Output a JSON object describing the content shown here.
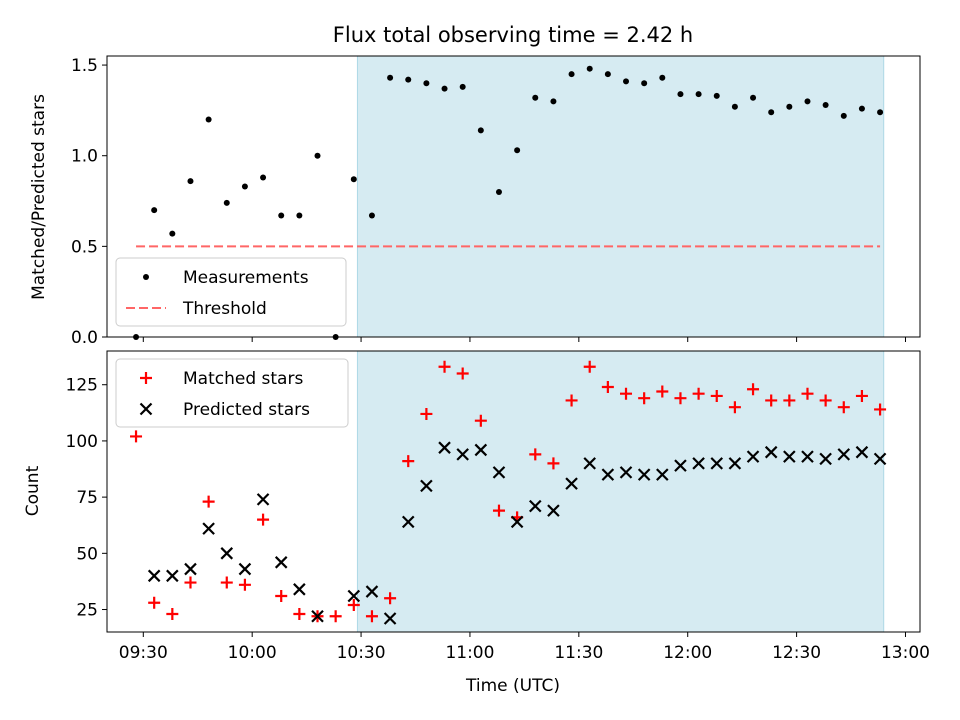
{
  "chart_data": {
    "title": "Flux total observing time = 2.42 h",
    "xlabel": "Time (UTC)",
    "x_ticks": [
      "09:30",
      "10:00",
      "10:30",
      "11:00",
      "11:30",
      "12:00",
      "12:30",
      "13:00"
    ],
    "x_tick_minutes": [
      570,
      600,
      630,
      660,
      690,
      720,
      750,
      780
    ],
    "xlim_minutes": [
      560,
      784
    ],
    "highlight_span_minutes": [
      629,
      774
    ],
    "highlight_color": "#add8e6",
    "panels": [
      {
        "type": "scatter",
        "ylabel": "Matched/Predicted stars",
        "ylim": [
          0,
          1.55
        ],
        "y_ticks": [
          "0.0",
          "0.5",
          "1.0",
          "1.5"
        ],
        "y_tick_values": [
          0,
          0.5,
          1.0,
          1.5
        ],
        "legend": "lower-left",
        "series": [
          {
            "name": "Measurements",
            "marker": "dot",
            "color": "#000000",
            "x": [
              568,
              573,
              578,
              583,
              588,
              593,
              598,
              603,
              608,
              613,
              618,
              623,
              628,
              633,
              638,
              643,
              648,
              653,
              658,
              663,
              668,
              673,
              678,
              683,
              688,
              693,
              698,
              703,
              708,
              713,
              718,
              723,
              728,
              733,
              738,
              743,
              748,
              753,
              758,
              763,
              768,
              773
            ],
            "y": [
              0.0,
              0.7,
              0.57,
              0.86,
              1.2,
              0.74,
              0.83,
              0.88,
              0.67,
              0.67,
              1.0,
              0.0,
              0.87,
              0.67,
              1.43,
              1.42,
              1.4,
              1.37,
              1.38,
              1.14,
              0.8,
              1.03,
              1.32,
              1.3,
              1.45,
              1.48,
              1.45,
              1.41,
              1.4,
              1.43,
              1.34,
              1.34,
              1.33,
              1.27,
              1.32,
              1.24,
              1.27,
              1.3,
              1.28,
              1.22,
              1.26,
              1.24
            ]
          },
          {
            "name": "Threshold",
            "marker": "dashed-line",
            "color": "#ff6666",
            "x": [
              568,
              773
            ],
            "y": [
              0.5,
              0.5
            ]
          }
        ]
      },
      {
        "type": "scatter",
        "ylabel": "Count",
        "ylim": [
          15,
          140
        ],
        "y_ticks": [
          "25",
          "50",
          "75",
          "100",
          "125"
        ],
        "y_tick_values": [
          25,
          50,
          75,
          100,
          125
        ],
        "legend": "upper-left",
        "series": [
          {
            "name": "Matched stars",
            "marker": "plus",
            "color": "#ff0000",
            "x": [
              568,
              573,
              578,
              583,
              588,
              593,
              598,
              603,
              608,
              613,
              618,
              623,
              628,
              633,
              638,
              643,
              648,
              653,
              658,
              663,
              668,
              673,
              678,
              683,
              688,
              693,
              698,
              703,
              708,
              713,
              718,
              723,
              728,
              733,
              738,
              743,
              748,
              753,
              758,
              763,
              768,
              773
            ],
            "y": [
              102,
              28,
              23,
              37,
              73,
              37,
              36,
              65,
              31,
              23,
              22,
              22,
              27,
              22,
              30,
              91,
              112,
              133,
              130,
              109,
              69,
              66,
              94,
              90,
              118,
              133,
              124,
              121,
              119,
              122,
              119,
              121,
              120,
              115,
              123,
              118,
              118,
              121,
              118,
              115,
              120,
              114
            ]
          },
          {
            "name": "Predicted stars",
            "marker": "x",
            "color": "#000000",
            "x": [
              573,
              578,
              583,
              588,
              593,
              598,
              603,
              608,
              613,
              618,
              628,
              633,
              638,
              643,
              648,
              653,
              658,
              663,
              668,
              673,
              678,
              683,
              688,
              693,
              698,
              703,
              708,
              713,
              718,
              723,
              728,
              733,
              738,
              743,
              748,
              753,
              758,
              763,
              768,
              773
            ],
            "y": [
              40,
              40,
              43,
              61,
              50,
              43,
              74,
              46,
              34,
              22,
              31,
              33,
              21,
              64,
              80,
              97,
              94,
              96,
              86,
              64,
              71,
              69,
              81,
              90,
              85,
              86,
              85,
              85,
              89,
              90,
              90,
              90,
              93,
              95,
              93,
              93,
              92,
              94,
              95,
              92
            ]
          }
        ]
      }
    ]
  }
}
